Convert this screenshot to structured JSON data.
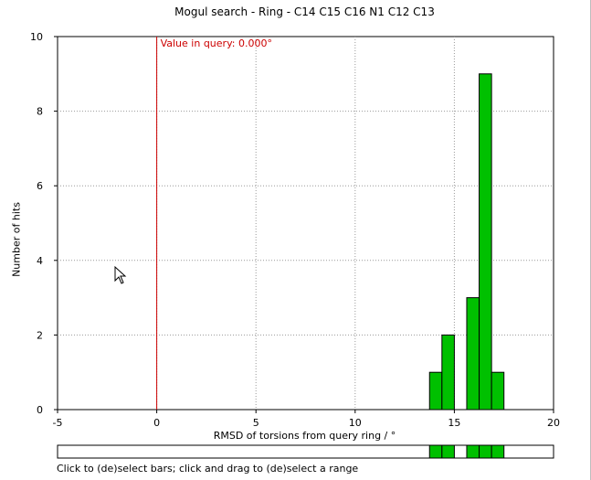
{
  "window": {
    "title": "Mogul search - Ring - C14 C15 C16 N1 C12 C13"
  },
  "chart_data": {
    "type": "bar",
    "title": "Mogul search - Ring - C14 C15 C16 N1 C12 C13",
    "xlabel": "RMSD of torsions from query ring / °",
    "ylabel": "Number of hits",
    "xlim": [
      -5,
      20
    ],
    "ylim": [
      0,
      10
    ],
    "x_ticks": [
      -5,
      0,
      5,
      10,
      15,
      20
    ],
    "y_ticks": [
      0,
      2,
      4,
      6,
      8,
      10
    ],
    "grid": true,
    "bin_width": 0.625,
    "bars": [
      {
        "x0": 13.75,
        "value": 1
      },
      {
        "x0": 14.375,
        "value": 2
      },
      {
        "x0": 15.625,
        "value": 3
      },
      {
        "x0": 16.25,
        "value": 9
      },
      {
        "x0": 16.875,
        "value": 1
      }
    ],
    "query_value": 0.0,
    "query_label": "Value in query: 0.000°",
    "bar_color": "#00c000",
    "query_line_color": "#cc0000"
  },
  "footer": {
    "hint": "Click to (de)select bars; click and drag to (de)select a range"
  }
}
